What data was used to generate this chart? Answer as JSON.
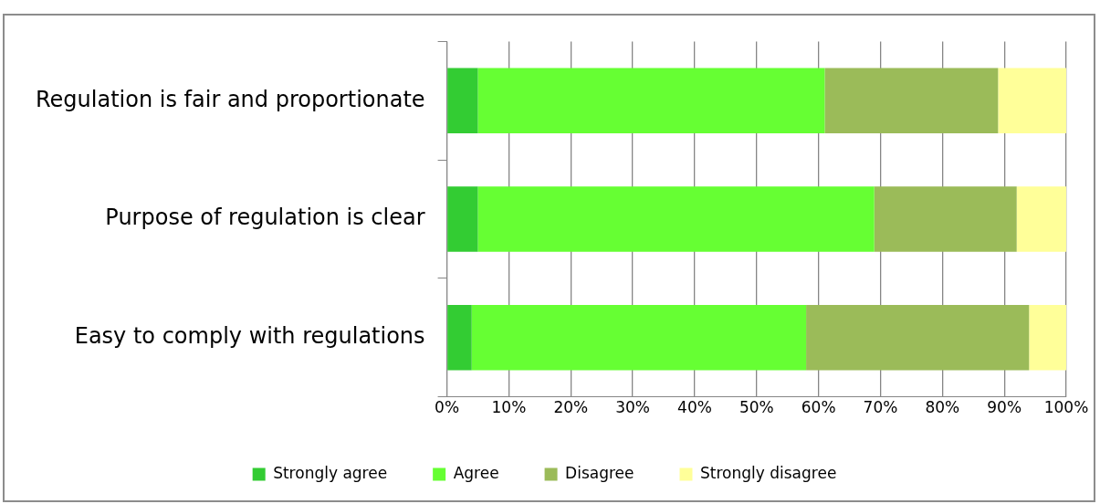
{
  "chart_data": {
    "type": "bar",
    "orientation": "horizontal",
    "stacked": true,
    "categories": [
      "Regulation is fair and proportionate",
      "Purpose of regulation is clear",
      "Easy to comply with regulations"
    ],
    "series": [
      {
        "name": "Strongly agree",
        "color": "#33cc33",
        "values": [
          5,
          5,
          4
        ]
      },
      {
        "name": "Agree",
        "color": "#66ff33",
        "values": [
          56,
          64,
          54
        ]
      },
      {
        "name": "Disagree",
        "color": "#9bbb59",
        "values": [
          28,
          23,
          36
        ]
      },
      {
        "name": "Strongly disagree",
        "color": "#ffff99",
        "values": [
          11,
          8,
          6
        ]
      }
    ],
    "xlim": [
      0,
      100
    ],
    "xticks": [
      {
        "value": 0,
        "label": "0%"
      },
      {
        "value": 10,
        "label": "10%"
      },
      {
        "value": 20,
        "label": "20%"
      },
      {
        "value": 30,
        "label": "30%"
      },
      {
        "value": 40,
        "label": "40%"
      },
      {
        "value": 50,
        "label": "50%"
      },
      {
        "value": 60,
        "label": "60%"
      },
      {
        "value": 70,
        "label": "70%"
      },
      {
        "value": 80,
        "label": "80%"
      },
      {
        "value": 90,
        "label": "90%"
      },
      {
        "value": 100,
        "label": "100%"
      }
    ],
    "grid": "x",
    "legend": "bottom"
  }
}
